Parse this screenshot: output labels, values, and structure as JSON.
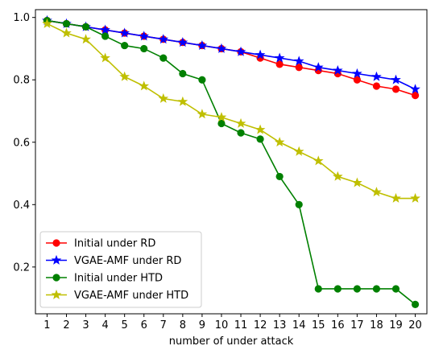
{
  "chart_data": {
    "type": "line",
    "xlabel": "number of under attack",
    "ylabel": "",
    "x": [
      1,
      2,
      3,
      4,
      5,
      6,
      7,
      8,
      9,
      10,
      11,
      12,
      13,
      14,
      15,
      16,
      17,
      18,
      19,
      20
    ],
    "xlim": [
      0.4,
      20.6
    ],
    "ylim": [
      0.05,
      1.025
    ],
    "yticks": [
      0.2,
      0.4,
      0.6,
      0.8,
      1.0
    ],
    "ytick_labels": [
      "0.2",
      "0.4",
      "0.6",
      "0.8",
      "1.0"
    ],
    "grid": false,
    "legend_position": "bottom-left",
    "series": [
      {
        "name": "Initial under RD",
        "color": "#ff0000",
        "marker": "circle",
        "values": [
          0.99,
          0.98,
          0.97,
          0.96,
          0.95,
          0.94,
          0.93,
          0.92,
          0.91,
          0.9,
          0.89,
          0.87,
          0.85,
          0.84,
          0.83,
          0.82,
          0.8,
          0.78,
          0.77,
          0.75
        ]
      },
      {
        "name": "VGAE-AMF under RD",
        "color": "#0000ff",
        "marker": "star",
        "values": [
          0.99,
          0.98,
          0.97,
          0.96,
          0.95,
          0.94,
          0.93,
          0.92,
          0.91,
          0.9,
          0.89,
          0.88,
          0.87,
          0.86,
          0.84,
          0.83,
          0.82,
          0.81,
          0.8,
          0.77
        ]
      },
      {
        "name": "Initial under HTD",
        "color": "#008000",
        "marker": "circle",
        "values": [
          0.99,
          0.98,
          0.97,
          0.94,
          0.91,
          0.9,
          0.87,
          0.82,
          0.8,
          0.66,
          0.63,
          0.61,
          0.49,
          0.4,
          0.13,
          0.13,
          0.13,
          0.13,
          0.13,
          0.08
        ]
      },
      {
        "name": "VGAE-AMF under HTD",
        "color": "#bfbf00",
        "marker": "star",
        "values": [
          0.98,
          0.95,
          0.93,
          0.87,
          0.81,
          0.78,
          0.74,
          0.73,
          0.69,
          0.68,
          0.66,
          0.64,
          0.6,
          0.57,
          0.54,
          0.49,
          0.47,
          0.44,
          0.42,
          0.42
        ]
      }
    ]
  }
}
